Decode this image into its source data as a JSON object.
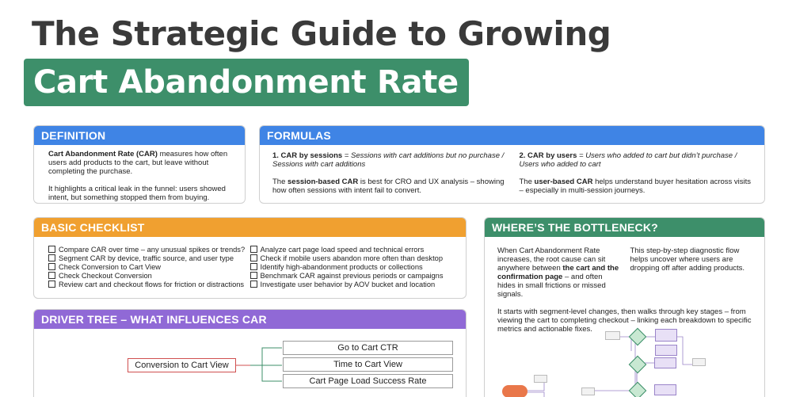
{
  "header": {
    "title_line1": "The Strategic Guide to Growing",
    "title_line2": "Cart Abandonment Rate"
  },
  "definition": {
    "heading": "DEFINITION",
    "term": "Cart Abandonment Rate (CAR)",
    "text1": " measures how often users add products to the cart, but leave without completing the purchase.",
    "text2": "It highlights a critical leak in the funnel: users showed intent, but something stopped them from buying."
  },
  "formulas": {
    "heading": "FORMULAS",
    "f1_label": "1. CAR by sessions",
    "f1_eq": " = Sessions with cart additions but no purchase / Sessions with cart additions",
    "f1_desc_pre": "The ",
    "f1_desc_bold": "session-based CAR",
    "f1_desc_post": " is best for CRO and UX analysis – showing how often sessions with intent fail to convert.",
    "f2_label": "2. CAR by users",
    "f2_eq": " = Users who added to cart but didn’t purchase / Users who added to cart",
    "f2_desc_pre": "The ",
    "f2_desc_bold": "user-based CAR",
    "f2_desc_post": " helps understand buyer hesitation across visits – especially in multi-session journeys."
  },
  "checklist": {
    "heading": "BASIC CHECKLIST",
    "left": [
      "Compare CAR over time – any unusual spikes or trends?",
      "Segment CAR by device, traffic source, and user type",
      "Check Conversion to Cart View",
      "Check Checkout Conversion",
      "Review cart and checkout flows for friction or distractions"
    ],
    "right": [
      "Analyze cart page load speed and technical errors",
      "Check if mobile users abandon more often than desktop",
      "Identify high-abandonment products or collections",
      "Benchmark CAR against previous periods or campaigns",
      "Investigate user behavior by AOV bucket and location"
    ]
  },
  "bottleneck": {
    "heading": "WHERE’S THE BOTTLENECK?",
    "p1_pre": "When Cart Abandonment Rate increases, the root cause can sit anywhere between ",
    "p1_bold": "the cart and the confirmation page",
    "p1_post": " – and often hides in small frictions or missed signals.",
    "p2": "This step-by-step diagnostic flow helps uncover where users are dropping off after adding products.",
    "p3": "It starts with segment-level changes, then walks through key stages – from viewing the cart to completing checkout – linking each breakdown to specific metrics and actionable fixes."
  },
  "driver_tree": {
    "heading": "DRIVER TREE – WHAT INFLUENCES CAR",
    "root": "Conversion to Cart View",
    "children": [
      "Go to Cart CTR",
      "Time to Cart View",
      "Cart Page Load Success Rate"
    ]
  },
  "colors": {
    "blue": "#3f84e5",
    "orange": "#f0a030",
    "green": "#3d8f6a",
    "purple": "#9069d6"
  }
}
